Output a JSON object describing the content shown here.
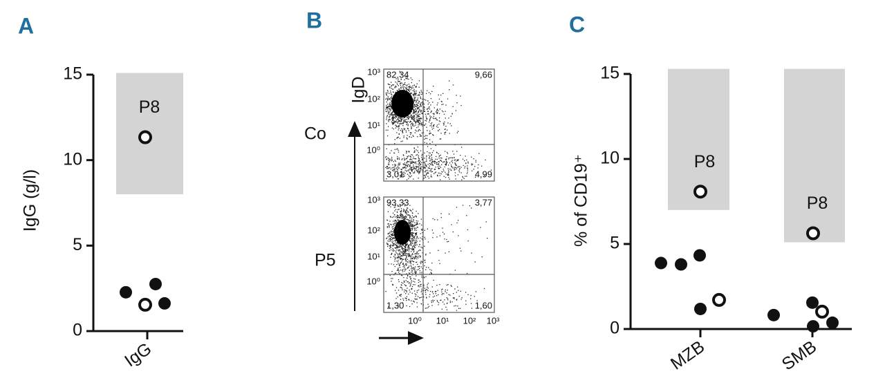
{
  "chart_data": [
    {
      "type": "strip",
      "panel": "A",
      "ylabel": "IgG  (g/l)",
      "categories": [
        "IgG"
      ],
      "ylim": [
        0,
        15
      ],
      "yticks": [
        0,
        5,
        10,
        15
      ],
      "groups": [
        {
          "filled": [
            2.27,
            2.75,
            1.62
          ],
          "open": [
            1.54,
            11.34
          ],
          "normal_range": [
            8,
            15.1
          ],
          "annotation": "P8"
        }
      ],
      "marker_color": "#111111",
      "range_color": "#d4d4d4"
    },
    {
      "type": "flow",
      "panel": "B",
      "ylabel": "IgD",
      "ticks": [
        "10⁰",
        "10¹",
        "10²",
        "10³"
      ],
      "plots": [
        {
          "name": "Co",
          "quadrants": [
            "82,34",
            "9,66",
            "3,01",
            "4,99"
          ]
        },
        {
          "name": "P5",
          "quadrants": [
            "93,33",
            "3,77",
            "1,30",
            "1,60"
          ]
        }
      ]
    },
    {
      "type": "strip",
      "panel": "C",
      "ylabel": "% of CD19⁺",
      "categories": [
        "MZB",
        "SMB"
      ],
      "ylim": [
        0,
        15
      ],
      "yticks": [
        0,
        5,
        10,
        15
      ],
      "groups": [
        {
          "filled": [
            3.88,
            3.8,
            4.33,
            1.18
          ],
          "open": [
            1.71,
            8.08
          ],
          "normal_range": [
            7,
            15.3
          ],
          "annotation": "P8"
        },
        {
          "filled": [
            0.82,
            1.55,
            0.16,
            0.37
          ],
          "open": [
            1.02,
            5.63
          ],
          "normal_range": [
            5.1,
            15.3
          ],
          "annotation": "P8"
        }
      ],
      "marker_color": "#111111",
      "range_color": "#d4d4d4"
    }
  ]
}
